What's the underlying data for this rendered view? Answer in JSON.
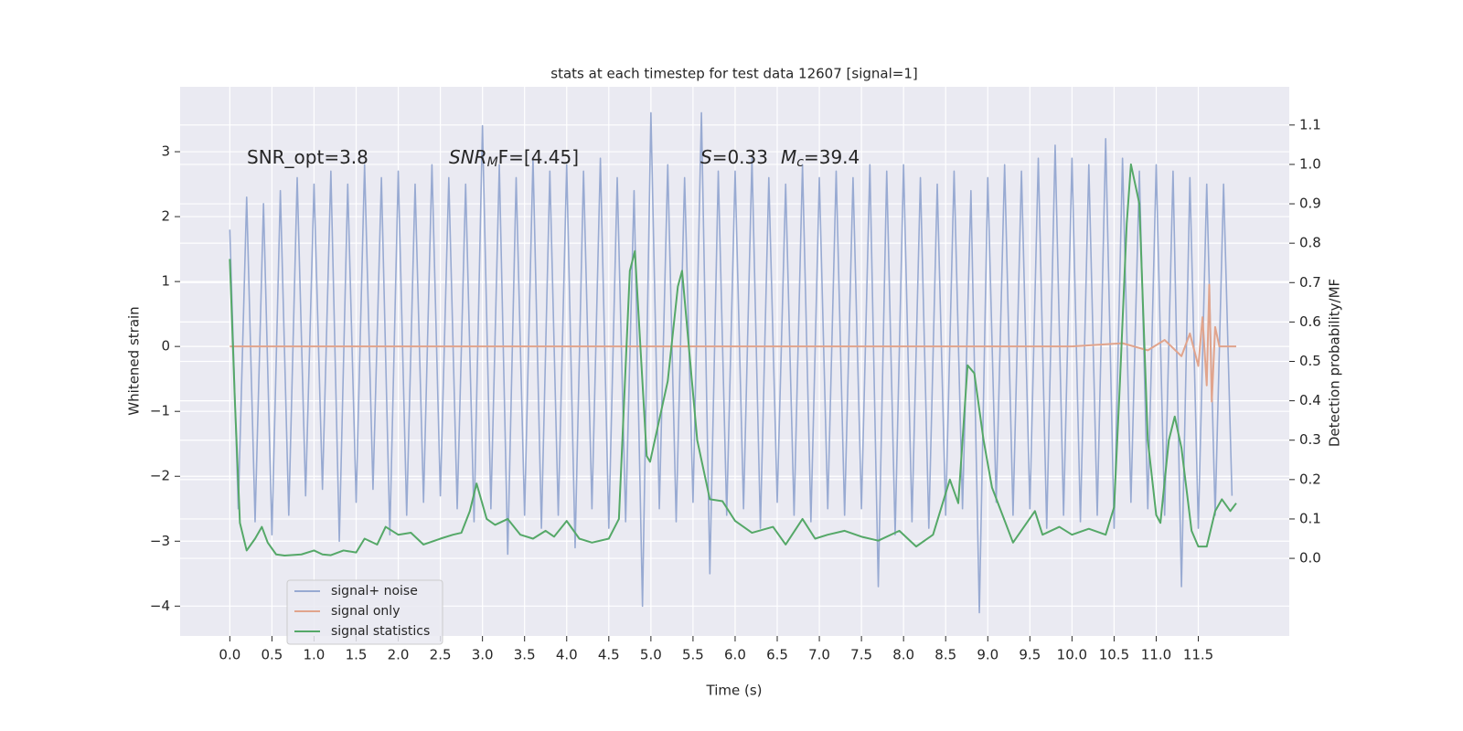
{
  "chart_data": {
    "type": "line",
    "title": "stats at each timestep for test data 12607 [signal=1]",
    "xlabel": "Time (s)",
    "ylabel": "Whitened strain",
    "y2label": "Detection probability/MF",
    "annotations": [
      [
        "SNR_opt=3.8"
      ],
      [
        "SNR",
        "M",
        "F=[4.45]"
      ],
      [
        "S",
        "=0.33",
        "M",
        "c",
        "=39.4"
      ]
    ],
    "grid": true,
    "legend": "lower left",
    "xlim": [
      -0.59,
      12.58
    ],
    "ylim": [
      -4.46,
      4.0
    ],
    "y2lim": [
      -0.197,
      1.197
    ],
    "xticks": [
      {
        "value": 0,
        "label": "0.0"
      },
      {
        "value": 0.5,
        "label": "0.5"
      },
      {
        "value": 1,
        "label": "1.0"
      },
      {
        "value": 1.5,
        "label": "1.5"
      },
      {
        "value": 2,
        "label": "2.0"
      },
      {
        "value": 2.5,
        "label": "2.5"
      },
      {
        "value": 3,
        "label": "3.0"
      },
      {
        "value": 3.5,
        "label": "3.5"
      },
      {
        "value": 4,
        "label": "4.0"
      },
      {
        "value": 4.5,
        "label": "4.5"
      },
      {
        "value": 5,
        "label": "5.0"
      },
      {
        "value": 5.5,
        "label": "5.5"
      },
      {
        "value": 6,
        "label": "6.0"
      },
      {
        "value": 6.5,
        "label": "6.5"
      },
      {
        "value": 7,
        "label": "7.0"
      },
      {
        "value": 7.5,
        "label": "7.5"
      },
      {
        "value": 8,
        "label": "8.0"
      },
      {
        "value": 8.5,
        "label": "8.5"
      },
      {
        "value": 9,
        "label": "9.0"
      },
      {
        "value": 9.5,
        "label": "9.5"
      },
      {
        "value": 10,
        "label": "10.0"
      },
      {
        "value": 10.5,
        "label": "10.5"
      },
      {
        "value": 11,
        "label": "11.0"
      },
      {
        "value": 11.5,
        "label": "11.5"
      }
    ],
    "yticks": [
      {
        "value": -4,
        "label": "−4"
      },
      {
        "value": -3,
        "label": "−3"
      },
      {
        "value": -2,
        "label": "−2"
      },
      {
        "value": -1,
        "label": "−1"
      },
      0,
      1,
      2,
      3
    ],
    "y2ticks": [
      {
        "value": 0,
        "label": "0.0"
      },
      {
        "value": 0.1,
        "label": "0.1"
      },
      {
        "value": 0.2,
        "label": "0.2"
      },
      {
        "value": 0.3,
        "label": "0.3"
      },
      {
        "value": 0.4,
        "label": "0.4"
      },
      {
        "value": 0.5,
        "label": "0.5"
      },
      {
        "value": 0.6,
        "label": "0.6"
      },
      {
        "value": 0.7,
        "label": "0.7"
      },
      {
        "value": 0.8,
        "label": "0.8"
      },
      {
        "value": 0.9,
        "label": "0.9"
      },
      {
        "value": 1,
        "label": "1.0"
      },
      {
        "value": 1.1,
        "label": "1.1"
      }
    ],
    "series": [
      {
        "name": "signal+ noise",
        "color": "#98aad2",
        "x": [
          0,
          0.1,
          0.2,
          0.3,
          0.4,
          0.5,
          0.6,
          0.7,
          0.8,
          0.9,
          1,
          1.1,
          1.2,
          1.3,
          1.4,
          1.5,
          1.6,
          1.7,
          1.8,
          1.9,
          2,
          2.1,
          2.2,
          2.3,
          2.4,
          2.5,
          2.6,
          2.7,
          2.8,
          2.9,
          3,
          3.1,
          3.2,
          3.3,
          3.4,
          3.5,
          3.6,
          3.7,
          3.8,
          3.9,
          4,
          4.1,
          4.2,
          4.3,
          4.4,
          4.5,
          4.6,
          4.7,
          4.8,
          4.9,
          5,
          5.1,
          5.2,
          5.3,
          5.4,
          5.5,
          5.6,
          5.7,
          5.8,
          5.9,
          6,
          6.1,
          6.2,
          6.3,
          6.4,
          6.5,
          6.6,
          6.7,
          6.8,
          6.9,
          7,
          7.1,
          7.2,
          7.3,
          7.4,
          7.5,
          7.6,
          7.7,
          7.8,
          7.9,
          8,
          8.1,
          8.2,
          8.3,
          8.4,
          8.5,
          8.6,
          8.7,
          8.8,
          8.9,
          9,
          9.1,
          9.2,
          9.3,
          9.4,
          9.5,
          9.6,
          9.7,
          9.8,
          9.9,
          10,
          10.1,
          10.2,
          10.3,
          10.4,
          10.5,
          10.6,
          10.7,
          10.8,
          10.9,
          11,
          11.1,
          11.2,
          11.3,
          11.4,
          11.5,
          11.6,
          11.7,
          11.8,
          11.9
        ],
        "values": [
          1.8,
          -2.5,
          2.3,
          -2.7,
          2.2,
          -2.9,
          2.4,
          -2.6,
          2.6,
          -2.3,
          2.5,
          -2.2,
          2.7,
          -3.0,
          2.5,
          -2.4,
          2.8,
          -2.2,
          2.6,
          -2.9,
          2.7,
          -2.6,
          2.5,
          -2.4,
          2.8,
          -2.3,
          2.6,
          -2.5,
          2.5,
          -2.7,
          3.4,
          -2.5,
          2.8,
          -3.2,
          2.6,
          -2.6,
          2.9,
          -2.8,
          2.7,
          -2.6,
          2.8,
          -3.1,
          2.7,
          -2.5,
          2.9,
          -2.8,
          2.6,
          -2.7,
          2.4,
          -4.0,
          3.6,
          -2.5,
          2.8,
          -2.7,
          2.6,
          -2.4,
          3.6,
          -3.5,
          2.7,
          -2.6,
          2.7,
          -2.5,
          2.9,
          -2.8,
          2.6,
          -2.4,
          2.5,
          -2.6,
          2.8,
          -2.7,
          2.6,
          -2.5,
          2.7,
          -2.6,
          2.6,
          -2.5,
          2.8,
          -3.7,
          2.7,
          -2.9,
          2.8,
          -2.7,
          2.6,
          -2.8,
          2.5,
          -2.6,
          2.7,
          -2.5,
          2.4,
          -4.1,
          2.6,
          -2.4,
          2.8,
          -2.6,
          2.7,
          -2.5,
          2.9,
          -2.8,
          3.1,
          -2.6,
          2.9,
          -2.7,
          2.8,
          -2.6,
          3.2,
          -2.8,
          2.9,
          -2.4,
          2.7,
          -2.5,
          2.8,
          -2.6,
          2.7,
          -3.7,
          2.6,
          -2.8,
          2.5,
          -2.6,
          2.5,
          -2.3
        ]
      },
      {
        "name": "signal only",
        "color": "#e1a48c",
        "x": [
          0,
          10,
          10.6,
          10.9,
          11.1,
          11.3,
          11.4,
          11.5,
          11.55,
          11.6,
          11.63,
          11.66,
          11.7,
          11.75,
          11.95
        ],
        "values": [
          0,
          0,
          0.05,
          -0.06,
          0.1,
          -0.15,
          0.2,
          -0.3,
          0.45,
          -0.6,
          0.95,
          -0.85,
          0.3,
          0,
          0
        ]
      },
      {
        "name": "signal statistics",
        "color": "#55a868",
        "axis": "y2",
        "x": [
          0,
          0.06,
          0.12,
          0.2,
          0.3,
          0.38,
          0.45,
          0.55,
          0.65,
          0.85,
          1,
          1.1,
          1.2,
          1.35,
          1.5,
          1.6,
          1.75,
          1.85,
          2,
          2.15,
          2.3,
          2.5,
          2.65,
          2.75,
          2.85,
          2.93,
          3.05,
          3.15,
          3.3,
          3.45,
          3.6,
          3.75,
          3.85,
          4,
          4.15,
          4.3,
          4.5,
          4.62,
          4.75,
          4.81,
          4.95,
          4.99,
          5.2,
          5.32,
          5.37,
          5.55,
          5.7,
          5.85,
          6,
          6.2,
          6.45,
          6.6,
          6.8,
          6.95,
          7.1,
          7.3,
          7.5,
          7.7,
          7.95,
          8.15,
          8.35,
          8.55,
          8.65,
          8.76,
          8.84,
          8.95,
          9.05,
          9.3,
          9.56,
          9.65,
          9.85,
          10,
          10.2,
          10.4,
          10.5,
          10.57,
          10.65,
          10.7,
          10.8,
          10.9,
          11,
          11.05,
          11.15,
          11.22,
          11.3,
          11.42,
          11.5,
          11.6,
          11.7,
          11.78,
          11.88,
          11.95
        ],
        "values": [
          0.76,
          0.4,
          0.09,
          0.02,
          0.05,
          0.08,
          0.04,
          0.01,
          0.007,
          0.01,
          0.02,
          0.01,
          0.008,
          0.02,
          0.015,
          0.05,
          0.035,
          0.08,
          0.06,
          0.065,
          0.035,
          0.05,
          0.06,
          0.065,
          0.12,
          0.19,
          0.1,
          0.085,
          0.1,
          0.06,
          0.05,
          0.07,
          0.055,
          0.095,
          0.05,
          0.04,
          0.05,
          0.1,
          0.73,
          0.78,
          0.26,
          0.245,
          0.45,
          0.69,
          0.73,
          0.3,
          0.15,
          0.145,
          0.095,
          0.065,
          0.08,
          0.035,
          0.1,
          0.05,
          0.06,
          0.07,
          0.055,
          0.045,
          0.07,
          0.03,
          0.06,
          0.2,
          0.14,
          0.49,
          0.47,
          0.3,
          0.18,
          0.04,
          0.12,
          0.06,
          0.08,
          0.06,
          0.075,
          0.06,
          0.13,
          0.45,
          0.85,
          1.0,
          0.9,
          0.3,
          0.11,
          0.09,
          0.3,
          0.36,
          0.28,
          0.07,
          0.03,
          0.03,
          0.12,
          0.15,
          0.12,
          0.14
        ]
      }
    ]
  }
}
